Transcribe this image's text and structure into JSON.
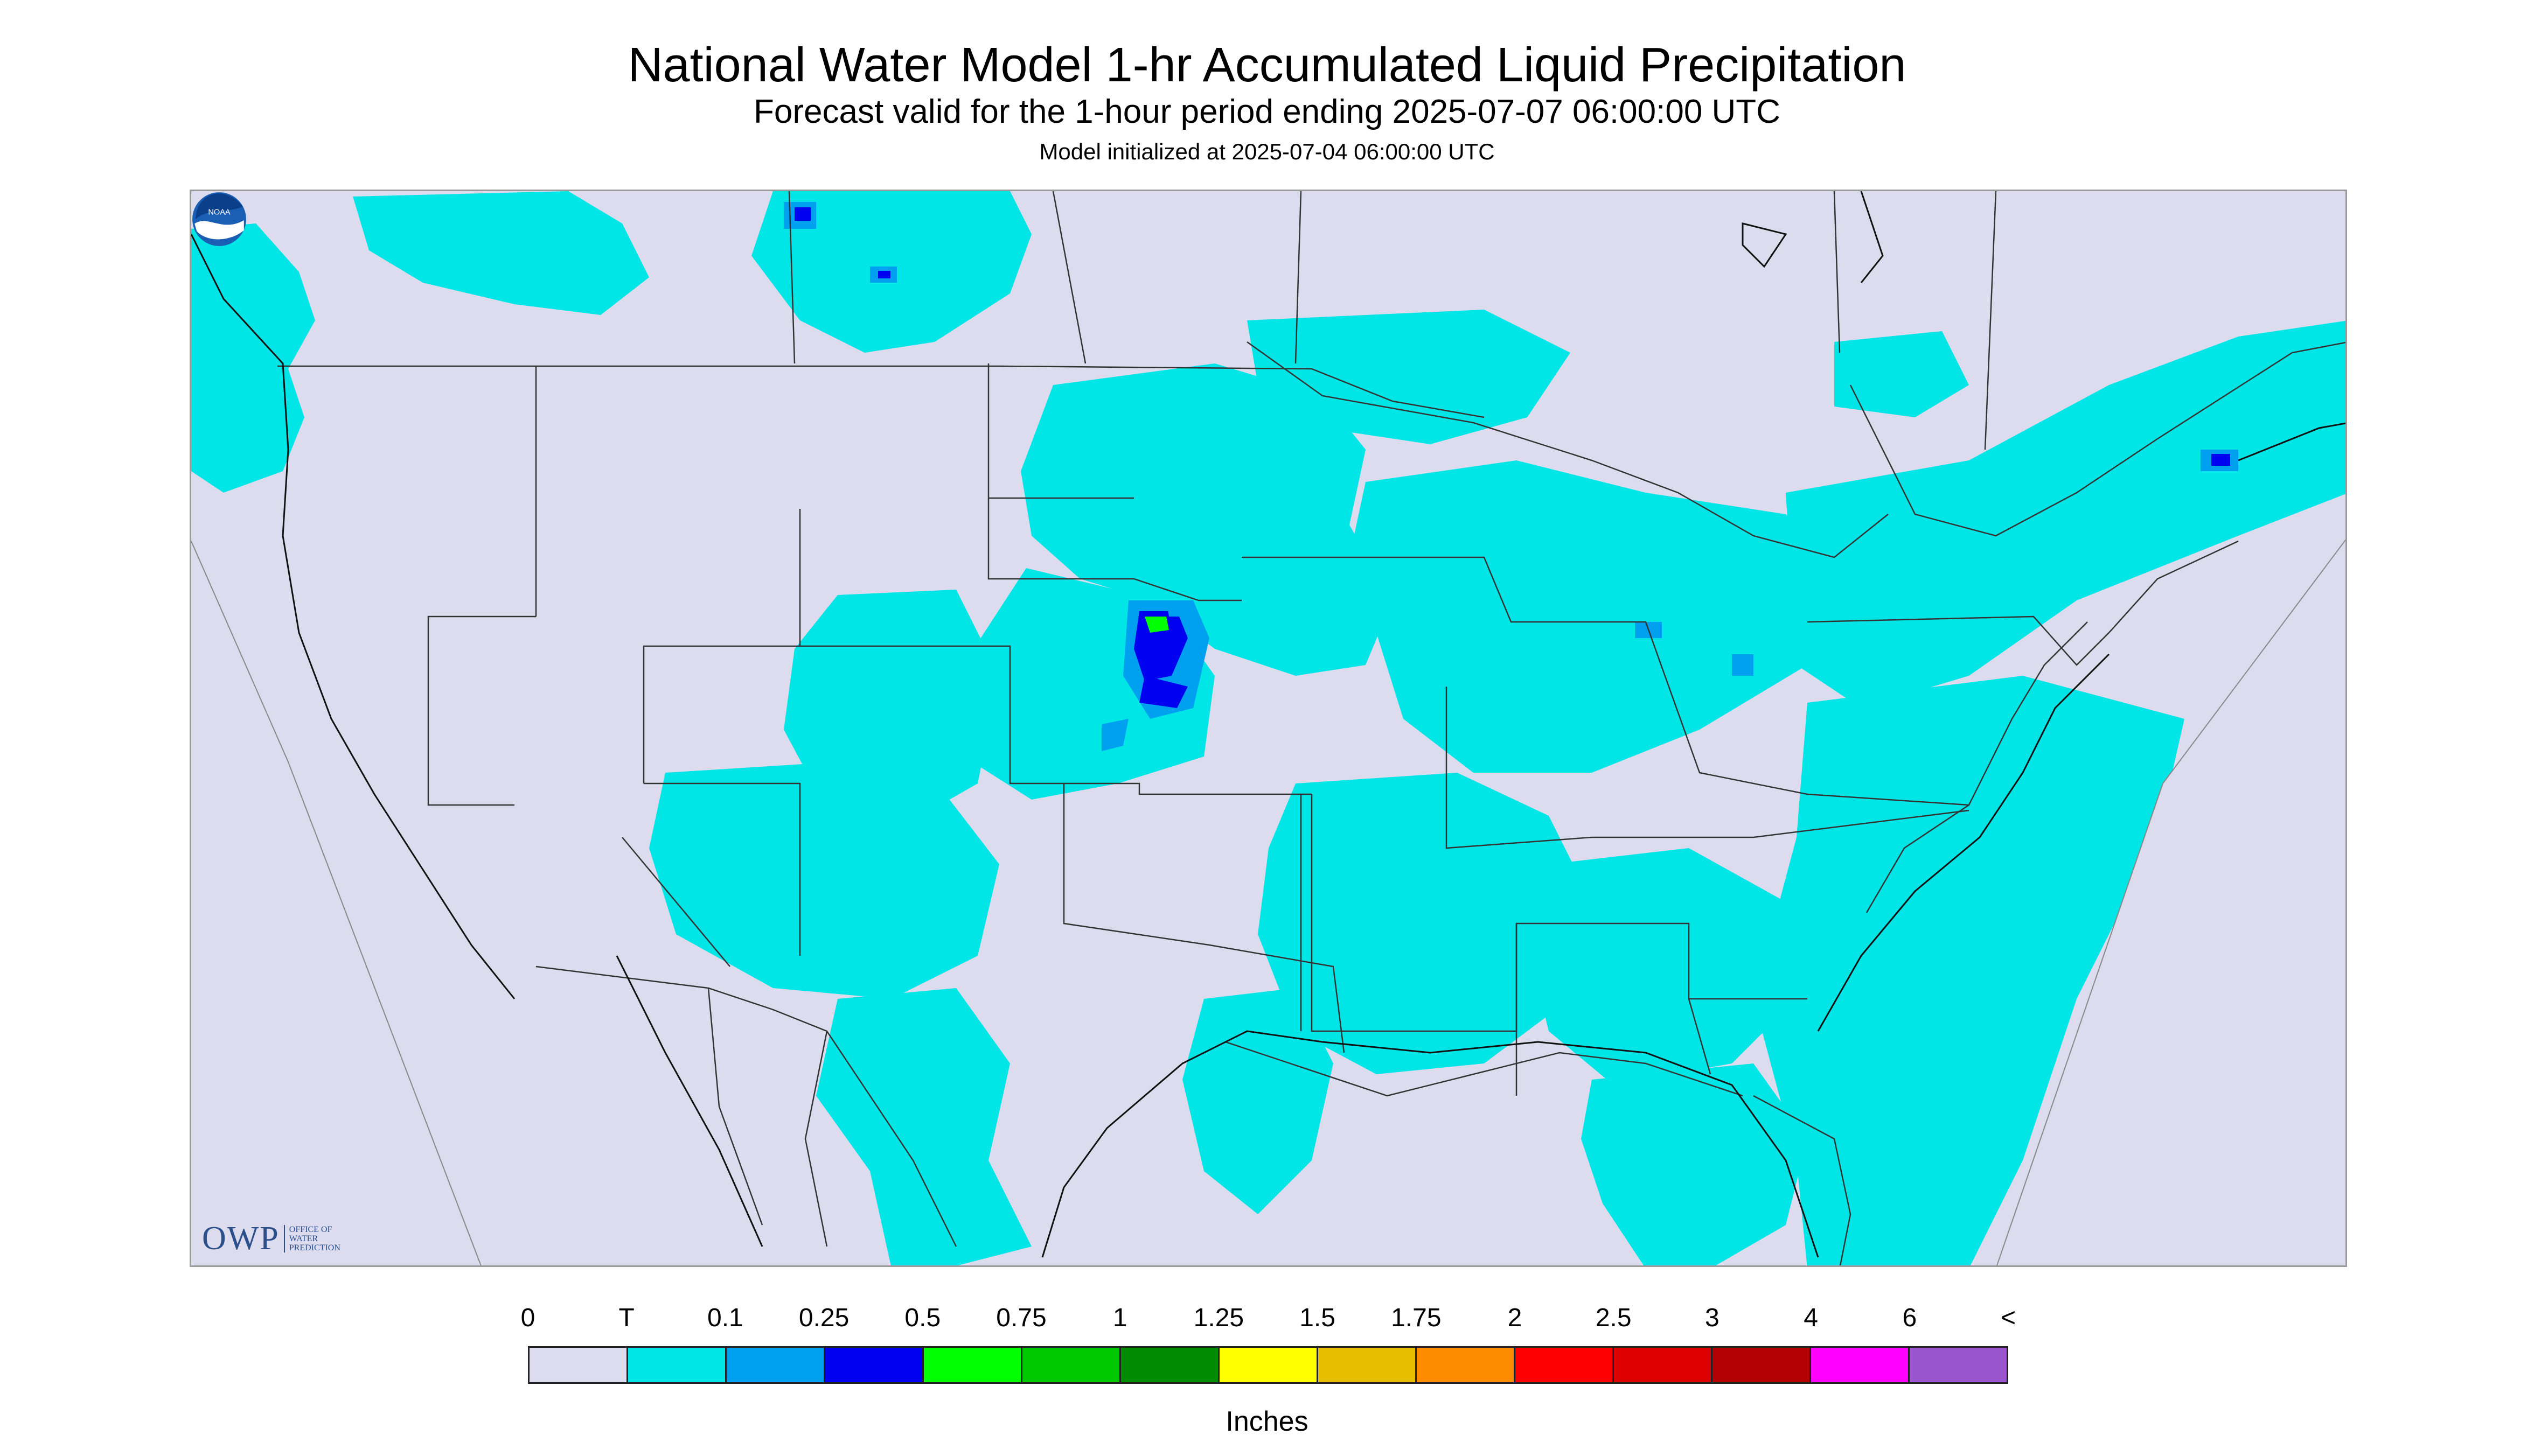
{
  "title": "National Water Model 1-hr Accumulated Liquid Precipitation",
  "subtitle": "Forecast valid for the 1-hour period ending 2025-07-07 06:00:00 UTC",
  "init_line": "Model initialized at 2025-07-04 06:00:00 UTC",
  "logos": {
    "owp_letters": "OWP",
    "owp_sub": [
      "Office of",
      "Water",
      "Prediction"
    ],
    "noaa_text": "NOAA"
  },
  "colors": {
    "background_no_precip": "#dcdcee",
    "out_of_domain": "#dcdcee",
    "trace": "#00e5e5",
    "boundary_lines": "#333333"
  },
  "legend": {
    "units": "Inches",
    "labels": [
      "0",
      "T",
      "0.1",
      "0.25",
      "0.5",
      "0.75",
      "1",
      "1.25",
      "1.5",
      "1.75",
      "2",
      "2.5",
      "3",
      "4",
      "6",
      "<"
    ],
    "colors": [
      "#dcdcee",
      "#00e5e5",
      "#00a0f0",
      "#0000f0",
      "#00ff00",
      "#00c800",
      "#008c00",
      "#ffff00",
      "#e6be00",
      "#ff8c00",
      "#ff0000",
      "#dc0000",
      "#b40000",
      "#ff00ff",
      "#9955cc"
    ]
  }
}
